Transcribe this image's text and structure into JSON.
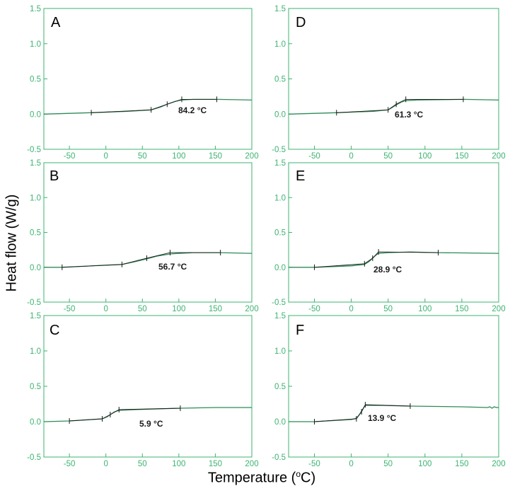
{
  "figure": {
    "ylabel": "Heat flow (W/g)",
    "xlabel_pre": "Temperature (",
    "xlabel_sup": "o",
    "xlabel_post": "C)"
  },
  "colors": {
    "axis": "#3cb371",
    "tick_text": "#3cb371",
    "curve_a": "#2e8b57",
    "curve_b": "#1a1a1a"
  },
  "chart_data": [
    {
      "type": "line",
      "panel": "A",
      "annotation": "84.2 °C",
      "xlim": [
        -85,
        200
      ],
      "ylim": [
        -0.5,
        1.5
      ],
      "xticks": [
        -50,
        0,
        50,
        100,
        150,
        200
      ],
      "yticks": [
        -0.5,
        0.0,
        0.5,
        1.0,
        1.5
      ],
      "grid": false,
      "series": [
        {
          "x": [
            -85,
            -20,
            30,
            62,
            75,
            84,
            95,
            104,
            120,
            152,
            200
          ],
          "y": [
            0.0,
            0.02,
            0.04,
            0.06,
            0.1,
            0.14,
            0.18,
            0.2,
            0.21,
            0.21,
            0.2
          ]
        },
        {
          "x": [
            -20,
            62,
            84,
            104,
            152
          ],
          "y": [
            0.02,
            0.06,
            0.14,
            0.21,
            0.21
          ]
        }
      ]
    },
    {
      "type": "line",
      "panel": "B",
      "annotation": "56.7 °C",
      "xlim": [
        -85,
        200
      ],
      "ylim": [
        -0.5,
        1.5
      ],
      "xticks": [
        -50,
        0,
        50,
        100,
        150,
        200
      ],
      "yticks": [
        -0.5,
        0.0,
        0.5,
        1.0,
        1.5
      ],
      "grid": false,
      "series": [
        {
          "x": [
            -85,
            -60,
            0,
            22,
            40,
            56,
            70,
            88,
            100,
            120,
            157,
            200
          ],
          "y": [
            0.0,
            0.0,
            0.03,
            0.04,
            0.08,
            0.12,
            0.16,
            0.19,
            0.2,
            0.21,
            0.21,
            0.2
          ]
        },
        {
          "x": [
            -60,
            22,
            56,
            88,
            157
          ],
          "y": [
            0.0,
            0.04,
            0.13,
            0.21,
            0.21
          ]
        }
      ]
    },
    {
      "type": "line",
      "panel": "C",
      "annotation": "5.9 °C",
      "xlim": [
        -85,
        200
      ],
      "ylim": [
        -0.5,
        1.5
      ],
      "xticks": [
        -50,
        0,
        50,
        100,
        150,
        200
      ],
      "yticks": [
        -0.5,
        0.0,
        0.5,
        1.0,
        1.5
      ],
      "grid": false,
      "series": [
        {
          "x": [
            -85,
            -50,
            -5,
            2,
            6,
            12,
            18,
            40,
            70,
            102,
            150,
            200
          ],
          "y": [
            0.0,
            0.01,
            0.04,
            0.07,
            0.1,
            0.14,
            0.16,
            0.17,
            0.18,
            0.19,
            0.2,
            0.2
          ]
        },
        {
          "x": [
            -50,
            -5,
            6,
            18,
            102
          ],
          "y": [
            0.01,
            0.04,
            0.1,
            0.17,
            0.19
          ]
        }
      ]
    },
    {
      "type": "line",
      "panel": "D",
      "annotation": "61.3 °C",
      "xlim": [
        -85,
        200
      ],
      "ylim": [
        -0.5,
        1.5
      ],
      "xticks": [
        -50,
        0,
        50,
        100,
        150,
        200
      ],
      "yticks": [
        -0.5,
        0.0,
        0.5,
        1.0,
        1.5
      ],
      "grid": false,
      "series": [
        {
          "x": [
            -85,
            -20,
            30,
            50,
            55,
            61,
            68,
            74,
            90,
            152,
            200
          ],
          "y": [
            0.0,
            0.02,
            0.04,
            0.06,
            0.09,
            0.13,
            0.17,
            0.19,
            0.2,
            0.21,
            0.2
          ]
        },
        {
          "x": [
            -20,
            50,
            61,
            74,
            152
          ],
          "y": [
            0.02,
            0.06,
            0.14,
            0.21,
            0.21
          ]
        }
      ]
    },
    {
      "type": "line",
      "panel": "E",
      "annotation": "28.9 °C",
      "xlim": [
        -85,
        200
      ],
      "ylim": [
        -0.5,
        1.5
      ],
      "xticks": [
        -50,
        0,
        50,
        100,
        150,
        200
      ],
      "yticks": [
        -0.5,
        0.0,
        0.5,
        1.0,
        1.5
      ],
      "grid": false,
      "series": [
        {
          "x": [
            -85,
            -50,
            0,
            18,
            24,
            29,
            33,
            37,
            50,
            80,
            118,
            200
          ],
          "y": [
            0.0,
            0.0,
            0.02,
            0.04,
            0.08,
            0.13,
            0.17,
            0.2,
            0.21,
            0.22,
            0.21,
            0.2
          ]
        },
        {
          "x": [
            -50,
            18,
            29,
            37,
            118
          ],
          "y": [
            0.0,
            0.05,
            0.13,
            0.22,
            0.21
          ]
        }
      ]
    },
    {
      "type": "line",
      "panel": "F",
      "annotation": "13.9 °C",
      "xlim": [
        -85,
        200
      ],
      "ylim": [
        -0.5,
        1.5
      ],
      "xticks": [
        -50,
        0,
        50,
        100,
        150,
        200
      ],
      "yticks": [
        -0.5,
        0.0,
        0.5,
        1.0,
        1.5
      ],
      "grid": false,
      "series": [
        {
          "x": [
            -85,
            -50,
            0,
            7,
            11,
            14,
            17,
            19,
            40,
            80,
            150,
            185,
            188,
            191,
            194,
            197,
            200
          ],
          "y": [
            0.0,
            0.0,
            0.03,
            0.05,
            0.1,
            0.15,
            0.2,
            0.23,
            0.23,
            0.22,
            0.21,
            0.2,
            0.21,
            0.19,
            0.21,
            0.2,
            0.2
          ]
        },
        {
          "x": [
            -50,
            7,
            14,
            19,
            80
          ],
          "y": [
            0.0,
            0.04,
            0.14,
            0.24,
            0.22
          ]
        }
      ]
    }
  ]
}
